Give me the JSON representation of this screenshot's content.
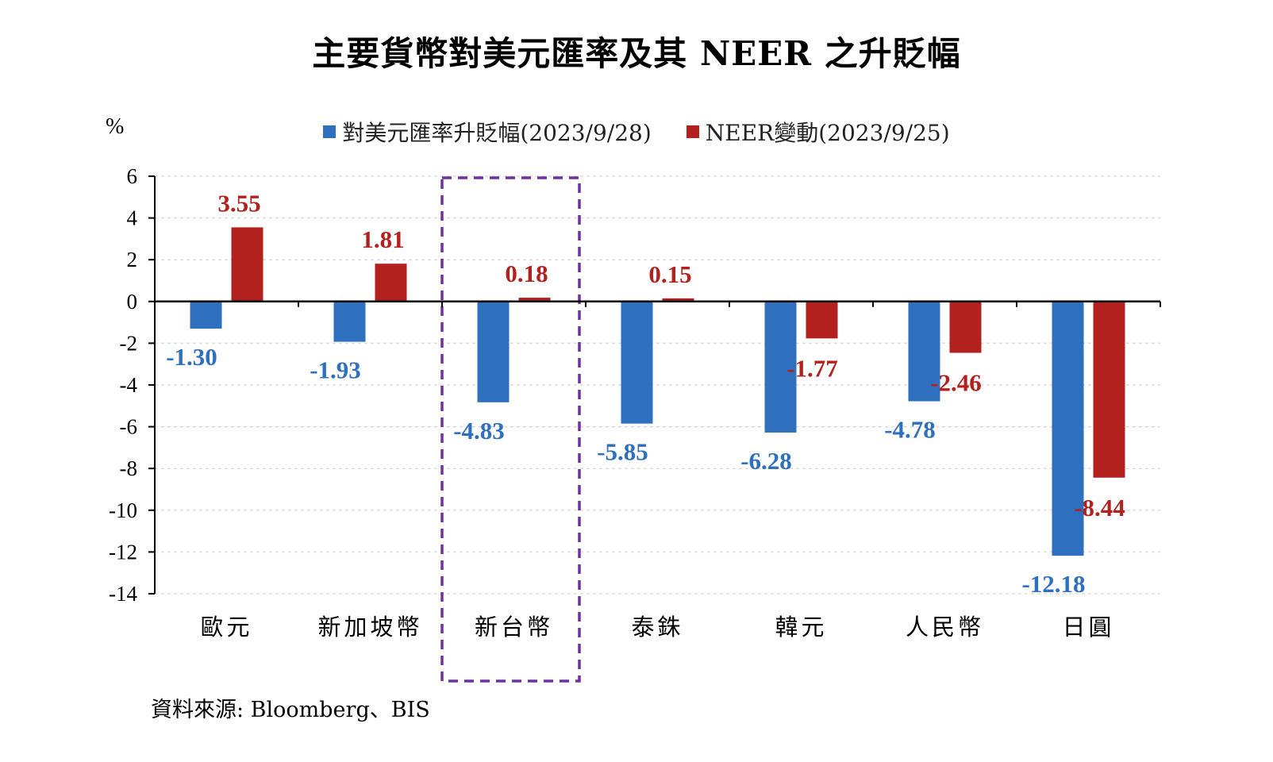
{
  "title": "主要貨幣對美元匯率及其 NEER 之升貶幅",
  "unit_label": "%",
  "source": "資料來源: Bloomberg、BIS",
  "colors": {
    "series1": "#2E6FBE",
    "series2": "#B3211E",
    "highlight": "#7030A0"
  },
  "chart_data": {
    "type": "bar",
    "categories": [
      "歐元",
      "新加坡幣",
      "新台幣",
      "泰銖",
      "韓元",
      "人民幣",
      "日圓"
    ],
    "series": [
      {
        "name": "對美元匯率升貶幅(2023/9/28)",
        "values": [
          -1.3,
          -1.93,
          -4.83,
          -5.85,
          -6.28,
          -4.78,
          -12.18
        ]
      },
      {
        "name": "NEER變動(2023/9/25)",
        "values": [
          3.55,
          1.81,
          0.18,
          0.15,
          -1.77,
          -2.46,
          -8.44
        ]
      }
    ],
    "ylim": [
      -14,
      6
    ],
    "yticks": [
      6,
      4,
      2,
      0,
      -2,
      -4,
      -6,
      -8,
      -10,
      -12,
      -14
    ],
    "grid": true,
    "legend_position": "top",
    "highlight_category": "新台幣"
  }
}
